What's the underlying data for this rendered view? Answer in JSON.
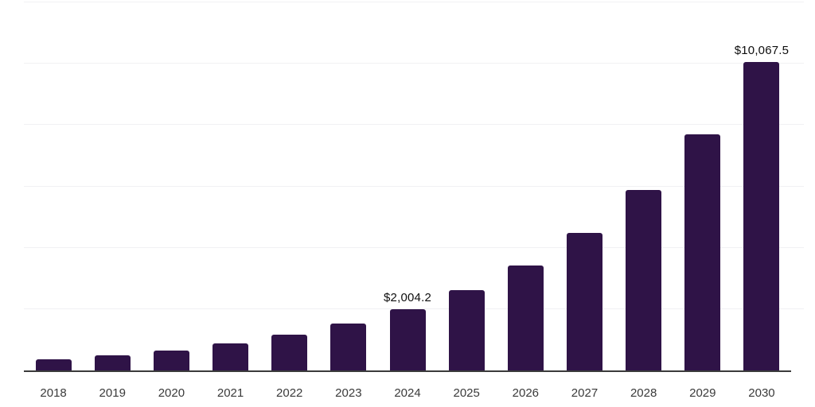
{
  "chart_data": {
    "type": "bar",
    "title": "",
    "xlabel": "",
    "ylabel": "",
    "categories": [
      "2018",
      "2019",
      "2020",
      "2021",
      "2022",
      "2023",
      "2024",
      "2025",
      "2026",
      "2027",
      "2028",
      "2029",
      "2030"
    ],
    "values": [
      365,
      490,
      650,
      870,
      1170,
      1520,
      2004.2,
      2620,
      3430,
      4490,
      5880,
      7690,
      10067.5
    ],
    "data_labels": [
      "",
      "",
      "",
      "",
      "",
      "",
      "$2,004.2",
      "",
      "",
      "",
      "",
      "",
      "$10,067.5"
    ],
    "ylim": [
      0,
      12000
    ],
    "y_gridlines": [
      2000,
      4000,
      6000,
      8000,
      10000,
      12000
    ],
    "grid": "horizontal-only",
    "legend": "none",
    "colors": {
      "bar": "#2f1347",
      "gridline": "#f1f1f3",
      "axis_line": "#3b3b3b",
      "data_label_text": "#0e0e0e",
      "tick_label_text": "#3a3a3a",
      "background": "#ffffff"
    }
  }
}
